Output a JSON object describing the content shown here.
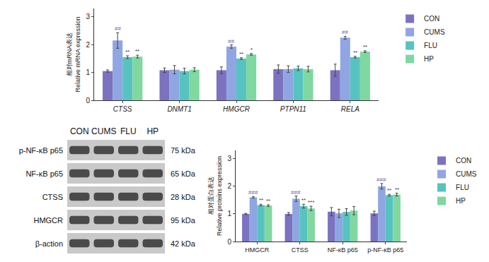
{
  "chart_data": [
    {
      "type": "bar",
      "ylabel": [
        "相对mRNA表达",
        "Relative mRNA expression"
      ],
      "categories": [
        "CTSS",
        "DNMT1",
        "HMGCR",
        "PTPN11",
        "RELA"
      ],
      "series": [
        {
          "name": "CON",
          "color": "#7b72c0",
          "values": [
            1.05,
            1.08,
            1.08,
            1.12,
            1.08
          ],
          "errors": [
            0.04,
            0.08,
            0.12,
            0.15,
            0.22
          ]
        },
        {
          "name": "CUMS",
          "color": "#8fa6e2",
          "values": [
            2.15,
            1.1,
            1.93,
            1.12,
            2.25
          ],
          "errors": [
            0.28,
            0.15,
            0.06,
            0.12,
            0.05
          ]
        },
        {
          "name": "FLU",
          "color": "#57c3c0",
          "values": [
            1.55,
            1.05,
            1.5,
            1.15,
            1.55
          ],
          "errors": [
            0.05,
            0.1,
            0.03,
            0.08,
            0.03
          ]
        },
        {
          "name": "HP",
          "color": "#80d8a0",
          "values": [
            1.57,
            1.1,
            1.65,
            1.12,
            1.75
          ],
          "errors": [
            0.05,
            0.07,
            0.03,
            0.1,
            0.03
          ]
        }
      ],
      "ylim": [
        0,
        3.3
      ],
      "yticks": [
        0,
        1,
        2,
        3
      ],
      "grid": false,
      "legend": "right",
      "significance": [
        {
          "category": "CTSS",
          "series": "CUMS",
          "text": "##"
        },
        {
          "category": "CTSS",
          "series": "FLU",
          "text": "**"
        },
        {
          "category": "CTSS",
          "series": "HP",
          "text": "**"
        },
        {
          "category": "HMGCR",
          "series": "CUMS",
          "text": "##"
        },
        {
          "category": "HMGCR",
          "series": "FLU",
          "text": "**"
        },
        {
          "category": "HMGCR",
          "series": "HP",
          "text": "*"
        },
        {
          "category": "RELA",
          "series": "CUMS",
          "text": "##"
        },
        {
          "category": "RELA",
          "series": "FLU",
          "text": "**"
        },
        {
          "category": "RELA",
          "series": "HP",
          "text": "**"
        }
      ]
    },
    {
      "type": "bar",
      "ylabel": [
        "相对蛋白表达",
        "Relative proteins expression"
      ],
      "categories": [
        "HMGCR",
        "CTSS",
        "NF-κB p65",
        "p-NF-κB p65"
      ],
      "series": [
        {
          "name": "CON",
          "color": "#7b72c0",
          "values": [
            1.0,
            1.0,
            1.08,
            1.02
          ],
          "errors": [
            0.02,
            0.05,
            0.15,
            0.08
          ]
        },
        {
          "name": "CUMS",
          "color": "#8fa6e2",
          "values": [
            1.6,
            1.55,
            1.02,
            2.0
          ],
          "errors": [
            0.03,
            0.1,
            0.15,
            0.1
          ]
        },
        {
          "name": "FLU",
          "color": "#57c3c0",
          "values": [
            1.32,
            1.28,
            1.07,
            1.68
          ],
          "errors": [
            0.03,
            0.07,
            0.12,
            0.03
          ]
        },
        {
          "name": "HP",
          "color": "#80d8a0",
          "values": [
            1.3,
            1.2,
            1.12,
            1.7
          ],
          "errors": [
            0.03,
            0.08,
            0.15,
            0.05
          ]
        }
      ],
      "ylim": [
        0,
        3.3
      ],
      "yticks": [
        0,
        1,
        2,
        3
      ],
      "grid": false,
      "legend": "right",
      "significance": [
        {
          "category": "HMGCR",
          "series": "CUMS",
          "text": "###"
        },
        {
          "category": "HMGCR",
          "series": "FLU",
          "text": "**"
        },
        {
          "category": "HMGCR",
          "series": "HP",
          "text": "**"
        },
        {
          "category": "CTSS",
          "series": "CUMS",
          "text": "###"
        },
        {
          "category": "CTSS",
          "series": "FLU",
          "text": "**"
        },
        {
          "category": "CTSS",
          "series": "HP",
          "text": "***"
        },
        {
          "category": "p-NF-κB p65",
          "series": "CUMS",
          "text": "###"
        },
        {
          "category": "p-NF-κB p65",
          "series": "FLU",
          "text": "**"
        },
        {
          "category": "p-NF-κB p65",
          "series": "HP",
          "text": "**"
        }
      ]
    }
  ],
  "blot": {
    "lanes": [
      "CON",
      "CUMS",
      "FLU",
      "HP"
    ],
    "rows": [
      {
        "label": "p-NF-κB p65",
        "size": "75 kDa"
      },
      {
        "label": "NF-κB p65",
        "size": "65 kDa"
      },
      {
        "label": "CTSS",
        "size": "28 kDa"
      },
      {
        "label": "HMGCR",
        "size": "95 kDa"
      },
      {
        "label": "β-action",
        "size": "42 kDa"
      }
    ]
  }
}
